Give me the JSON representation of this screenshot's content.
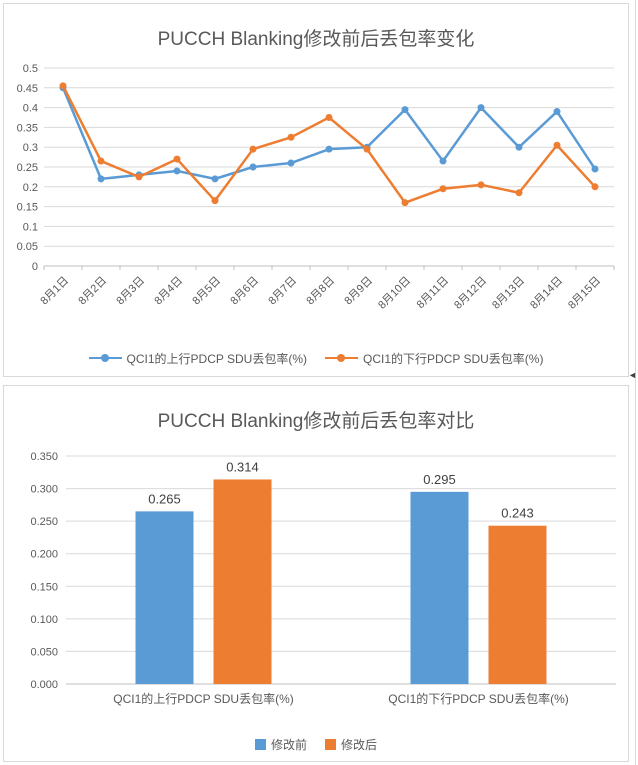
{
  "colors": {
    "series_blue": "#5B9BD5",
    "series_orange": "#ED7D31",
    "gridline": "#D9D9D9",
    "axis_line": "#BFBFBF",
    "tick_text": "#595959",
    "title_text": "#595959",
    "data_label_text": "#404040"
  },
  "scroll_arrow_icon": "◄",
  "chart_data": [
    {
      "type": "line",
      "title": "PUCCH Blanking修改前后丢包率变化",
      "categories": [
        "8月1日",
        "8月2日",
        "8月3日",
        "8月4日",
        "8月5日",
        "8月6日",
        "8月7日",
        "8月8日",
        "8月9日",
        "8月10日",
        "8月11日",
        "8月12日",
        "8月13日",
        "8月14日",
        "8月15日"
      ],
      "series": [
        {
          "name": "QCI1的上行PDCP SDU丢包率(%)",
          "color": "#5B9BD5",
          "values": [
            0.45,
            0.22,
            0.23,
            0.24,
            0.22,
            0.25,
            0.26,
            0.295,
            0.3,
            0.395,
            0.265,
            0.4,
            0.3,
            0.39,
            0.245
          ]
        },
        {
          "name": "QCI1的下行PDCP SDU丢包率(%)",
          "color": "#ED7D31",
          "values": [
            0.455,
            0.265,
            0.225,
            0.27,
            0.165,
            0.295,
            0.325,
            0.375,
            0.295,
            0.16,
            0.195,
            0.205,
            0.185,
            0.305,
            0.2
          ]
        }
      ],
      "ylim": [
        0,
        0.5
      ],
      "ytick_step": 0.05,
      "ytick_labels": [
        "0",
        "0.05",
        "0.1",
        "0.15",
        "0.2",
        "0.25",
        "0.3",
        "0.35",
        "0.4",
        "0.45",
        "0.5"
      ],
      "grid": true,
      "legend_position": "bottom"
    },
    {
      "type": "bar",
      "title": "PUCCH Blanking修改前后丢包率对比",
      "categories": [
        "QCI1的上行PDCP SDU丢包率(%)",
        "QCI1的下行PDCP SDU丢包率(%)"
      ],
      "series": [
        {
          "name": "修改前",
          "color": "#5B9BD5",
          "values": [
            0.265,
            0.295
          ],
          "data_labels": [
            "0.265",
            "0.295"
          ]
        },
        {
          "name": "修改后",
          "color": "#ED7D31",
          "values": [
            0.314,
            0.243
          ],
          "data_labels": [
            "0.314",
            "0.243"
          ]
        }
      ],
      "ylim": [
        0,
        0.35
      ],
      "ytick_step": 0.05,
      "ytick_labels": [
        "0.000",
        "0.050",
        "0.100",
        "0.150",
        "0.200",
        "0.250",
        "0.300",
        "0.350"
      ],
      "grid": true,
      "legend_position": "bottom"
    }
  ]
}
